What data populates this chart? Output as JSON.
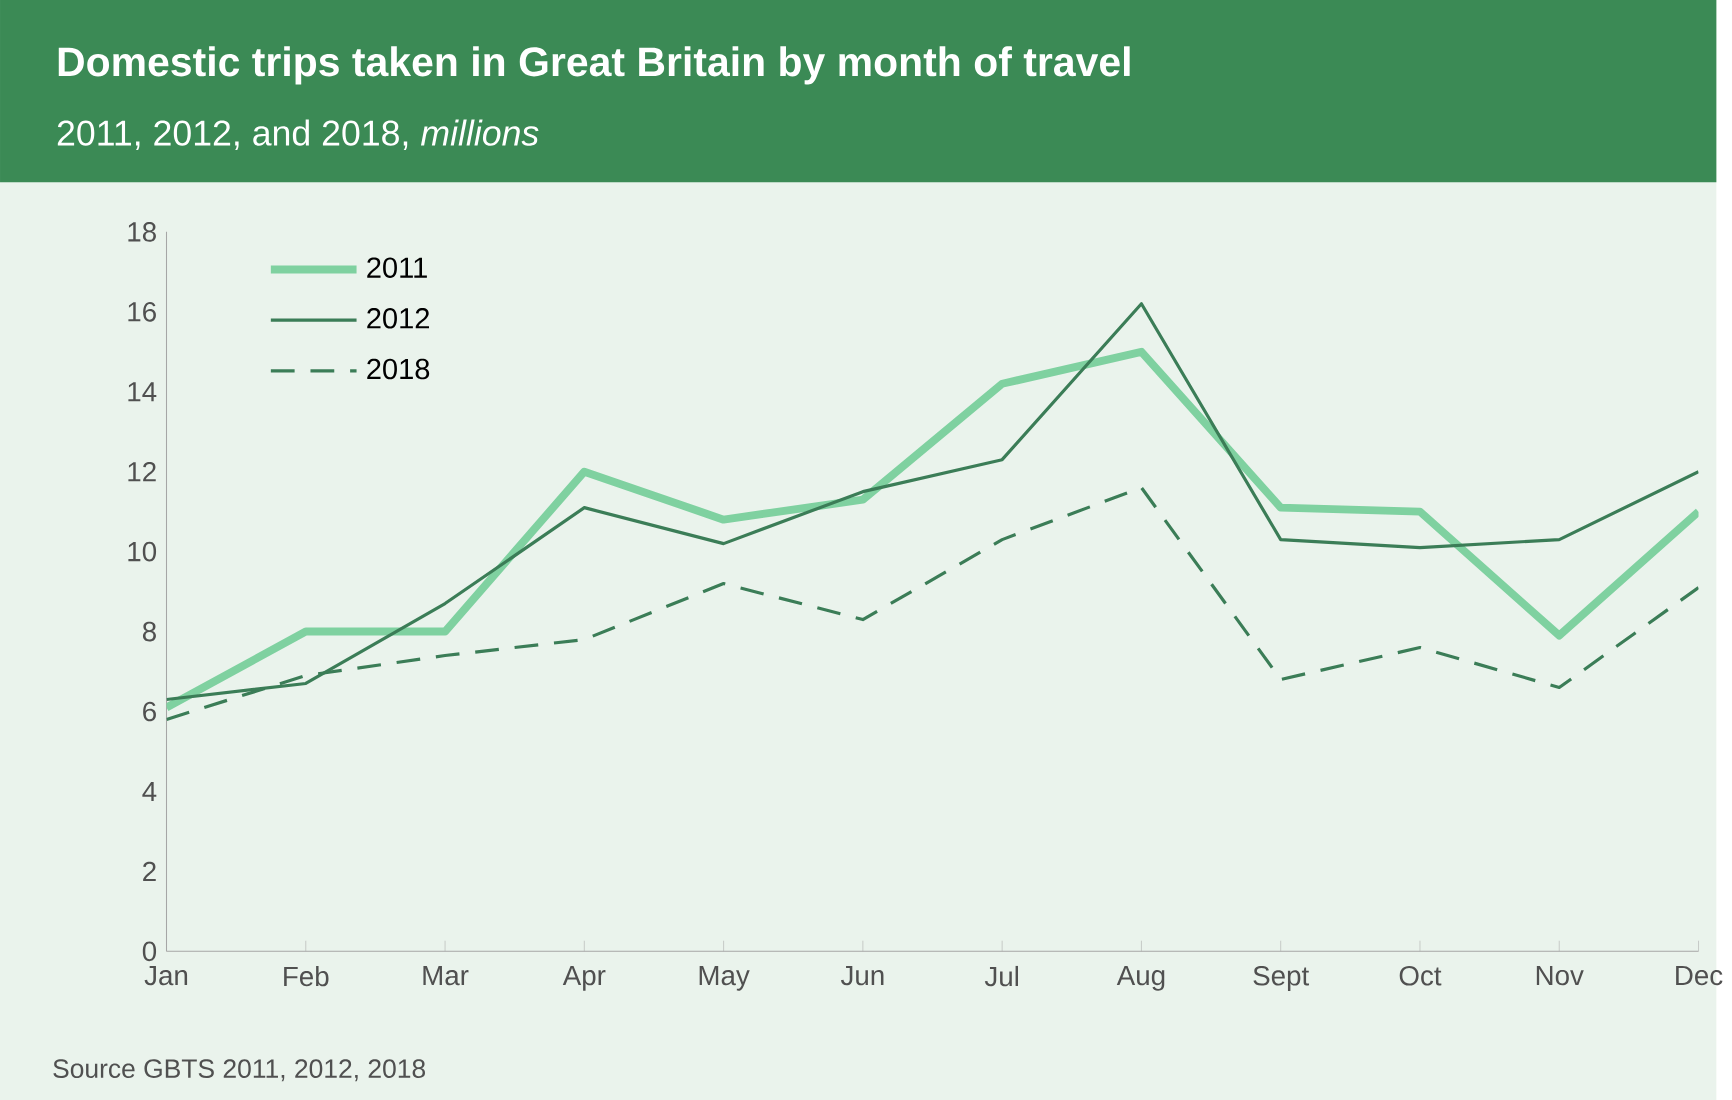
{
  "chart_data": {
    "type": "line",
    "title": "Domestic trips taken in Great Britain by month of travel",
    "subtitle": "2011, 2012, and 2018, *millions*",
    "categories": [
      "Jan",
      "Feb",
      "Mar",
      "Apr",
      "May",
      "Jun",
      "Jul",
      "Aug",
      "Sept",
      "Oct",
      "Nov",
      "Dec"
    ],
    "series": [
      {
        "name": "2011",
        "color": "#7fd1a0",
        "line_style": "solid",
        "values": [
          6.1,
          8.0,
          8.0,
          12.0,
          10.8,
          11.3,
          14.2,
          15.0,
          11.1,
          11.0,
          7.9,
          11.0
        ]
      },
      {
        "name": "2012",
        "color": "#3b7d57",
        "line_style": "solid",
        "values": [
          6.3,
          6.7,
          8.7,
          11.1,
          10.2,
          11.5,
          12.3,
          16.2,
          10.3,
          10.1,
          10.3,
          12.0
        ]
      },
      {
        "name": "2018",
        "color": "#3b7d57",
        "line_style": "dashed",
        "values": [
          5.8,
          6.9,
          7.4,
          7.8,
          9.2,
          8.3,
          10.3,
          11.6,
          6.8,
          7.6,
          6.6,
          9.1
        ]
      }
    ],
    "ylim": [
      0,
      18
    ],
    "yticks": [
      0,
      2,
      4,
      6,
      8,
      10,
      12,
      14,
      16,
      18
    ],
    "grid": false,
    "legend": "top left",
    "marker": "none",
    "annotations": [
      "Source GBTS 2011, 2012, 2018"
    ]
  }
}
